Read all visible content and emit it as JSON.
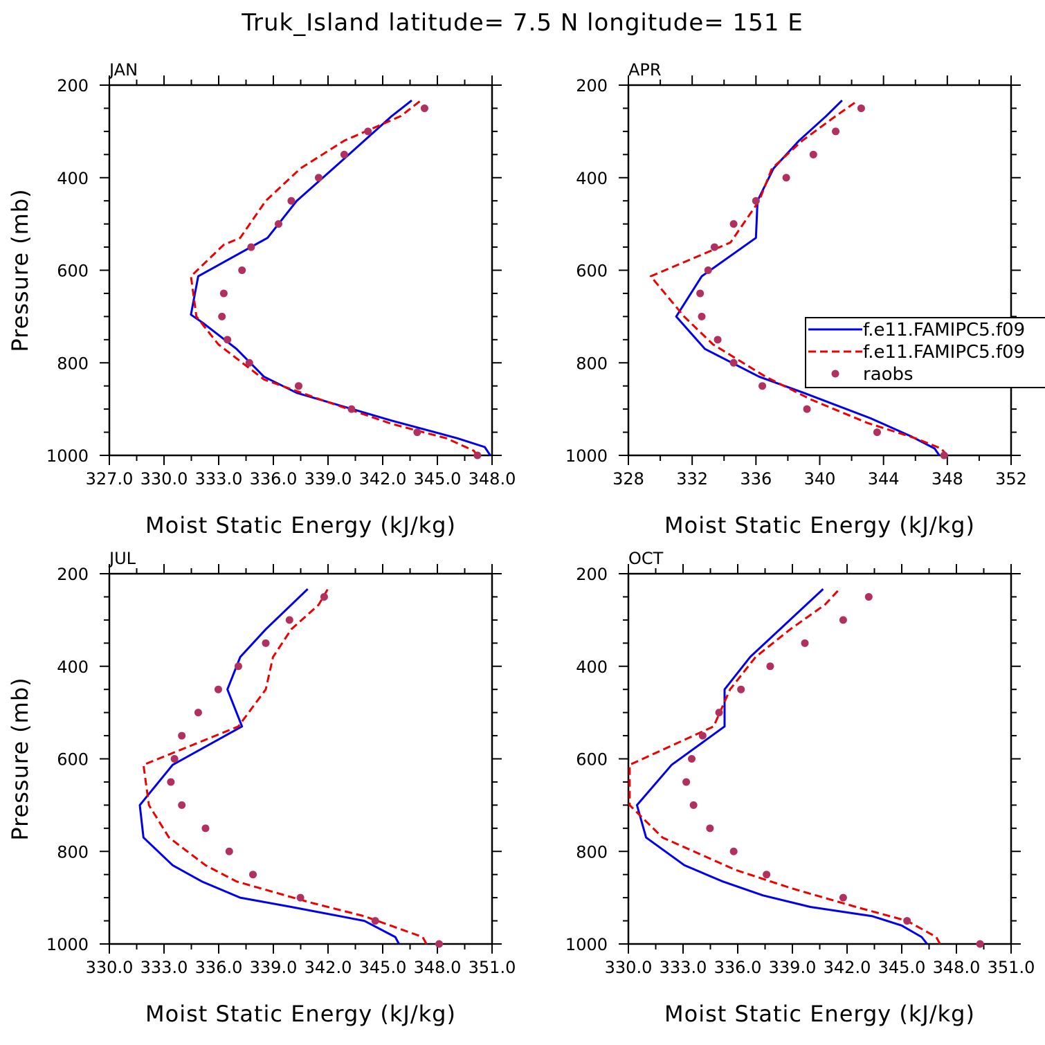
{
  "title": "Truk_Island   latitude= 7.5 N longitude= 151 E",
  "legend": {
    "entries": [
      {
        "label": "f.e11.FAMIPC5.f09",
        "style": "solid",
        "color": "#0000ee"
      },
      {
        "label": "f.e11.FAMIPC5.f09",
        "style": "dashed",
        "color": "#ee0000"
      },
      {
        "label": "raobs",
        "style": "dots",
        "color": "#b03060"
      }
    ]
  },
  "chart_data": [
    {
      "type": "line",
      "name": "JAN",
      "xlabel": "Moist Static Energy (kJ/kg)",
      "ylabel": "Pressure (mb)",
      "xlim": [
        327.03,
        348.0
      ],
      "ylim": [
        1000,
        200
      ],
      "x_tick_labels": [
        "327.0",
        "330.0",
        "333.0",
        "336.0",
        "339.0",
        "342.0",
        "345.0",
        "348.0"
      ],
      "y_ticks": [
        200,
        400,
        600,
        800,
        1000
      ],
      "series": [
        {
          "style": "solid",
          "color": "#0000ee",
          "p": [
            1000,
            982,
            963,
            925,
            865,
            830,
            770,
            715,
            696,
            613,
            530,
            450,
            380,
            320,
            267,
            233
          ],
          "x": [
            347.9,
            347.6,
            346.1,
            342.5,
            337.3,
            335.5,
            334.0,
            332.2,
            331.5,
            331.9,
            335.7,
            337.3,
            339.3,
            341.0,
            342.5,
            343.6
          ]
        },
        {
          "style": "dashed",
          "color": "#ee0000",
          "p": [
            1000,
            990,
            963,
            932,
            878,
            836,
            760,
            700,
            613,
            545,
            530,
            450,
            380,
            320,
            267,
            233
          ],
          "x": [
            347.2,
            347.0,
            345.5,
            342.5,
            338.5,
            335.5,
            333.0,
            331.8,
            331.5,
            333.3,
            334.2,
            335.6,
            337.5,
            339.9,
            343.0,
            344.1
          ],
          "x_note": "dashed"
        },
        {
          "style": "dots",
          "color": "#b03060",
          "p": [
            1000,
            950,
            900,
            850,
            800,
            750,
            700,
            650,
            600,
            550,
            500,
            450,
            400,
            350,
            300,
            250
          ],
          "x": [
            347.2,
            343.9,
            340.3,
            337.4,
            334.7,
            333.5,
            333.2,
            333.3,
            334.3,
            334.8,
            336.3,
            337.0,
            338.5,
            339.9,
            341.2,
            344.3
          ]
        }
      ]
    },
    {
      "type": "line",
      "name": "APR",
      "xlabel": "Moist Static Energy (kJ/kg)",
      "ylabel": "",
      "xlim": [
        328,
        352
      ],
      "ylim": [
        1000,
        200
      ],
      "x_tick_labels": [
        "328",
        "332",
        "336",
        "340",
        "344",
        "348",
        "352"
      ],
      "y_ticks": [
        200,
        400,
        600,
        800,
        1000
      ],
      "series": [
        {
          "style": "solid",
          "color": "#0000ee",
          "p": [
            1000,
            985,
            960,
            920,
            865,
            830,
            770,
            700,
            613,
            530,
            450,
            380,
            320,
            267,
            233
          ],
          "x": [
            347.5,
            347.2,
            345.8,
            343.2,
            339.0,
            336.2,
            332.8,
            331.0,
            332.6,
            336.0,
            336.1,
            337.1,
            338.7,
            340.4,
            341.4
          ],
          "x_note": "solid"
        },
        {
          "style": "dashed",
          "color": "#ee0000",
          "p": [
            1000,
            985,
            963,
            930,
            880,
            830,
            760,
            700,
            613,
            540,
            450,
            380,
            320,
            267,
            233
          ],
          "x": [
            348.0,
            347.6,
            346.0,
            343.0,
            339.5,
            336.6,
            333.3,
            331.5,
            329.4,
            334.4,
            336.2,
            337.0,
            338.9,
            341.0,
            342.4
          ]
        },
        {
          "style": "dots",
          "color": "#b03060",
          "p": [
            1000,
            950,
            900,
            850,
            800,
            750,
            700,
            650,
            600,
            550,
            500,
            450,
            400,
            350,
            300,
            250
          ],
          "x": [
            347.8,
            343.6,
            339.2,
            336.4,
            334.6,
            333.6,
            332.6,
            332.5,
            333.0,
            333.4,
            334.6,
            336.0,
            337.9,
            339.6,
            341.0,
            342.6
          ]
        }
      ]
    },
    {
      "type": "line",
      "name": "JUL",
      "xlabel": "Moist Static Energy (kJ/kg)",
      "ylabel": "Pressure (mb)",
      "xlim": [
        330.03,
        351.0
      ],
      "ylim": [
        1000,
        200
      ],
      "x_tick_labels": [
        "330.0",
        "333.0",
        "336.0",
        "339.0",
        "342.0",
        "345.0",
        "348.0",
        "351.0"
      ],
      "y_ticks": [
        200,
        400,
        600,
        800,
        1000
      ],
      "series": [
        {
          "style": "solid",
          "color": "#0000ee",
          "p": [
            1000,
            985,
            950,
            920,
            900,
            865,
            830,
            770,
            700,
            613,
            530,
            450,
            380,
            320,
            233
          ],
          "x": [
            345.9,
            345.7,
            344.0,
            340.0,
            337.2,
            335.1,
            333.5,
            331.9,
            331.7,
            333.5,
            337.3,
            336.5,
            337.2,
            338.6,
            340.9
          ]
        },
        {
          "style": "dashed",
          "color": "#ee0000",
          "p": [
            1000,
            985,
            940,
            910,
            865,
            830,
            770,
            700,
            613,
            530,
            450,
            380,
            320,
            267,
            233
          ],
          "x": [
            347.4,
            347.2,
            344.0,
            341.0,
            337.0,
            335.3,
            333.3,
            332.2,
            331.9,
            337.1,
            338.6,
            339.0,
            340.0,
            341.5,
            342.0
          ],
          "x_note": "dashed"
        },
        {
          "style": "dots",
          "color": "#b03060",
          "p": [
            1000,
            950,
            900,
            850,
            800,
            750,
            700,
            650,
            600,
            550,
            500,
            450,
            400,
            350,
            300,
            250
          ],
          "x": [
            348.1,
            344.6,
            340.5,
            337.9,
            336.6,
            335.3,
            334.0,
            333.4,
            333.6,
            334.0,
            334.9,
            336.0,
            337.1,
            338.6,
            339.9,
            341.8
          ]
        }
      ]
    },
    {
      "type": "line",
      "name": "OCT",
      "xlabel": "Moist Static Energy (kJ/kg)",
      "ylabel": "",
      "xlim": [
        330.03,
        351.0
      ],
      "ylim": [
        1000,
        200
      ],
      "x_tick_labels": [
        "330.0",
        "333.0",
        "336.0",
        "339.0",
        "342.0",
        "345.0",
        "348.0",
        "351.0"
      ],
      "y_ticks": [
        200,
        400,
        600,
        800,
        1000
      ],
      "series": [
        {
          "style": "solid",
          "color": "#0000ee",
          "p": [
            1000,
            985,
            960,
            940,
            920,
            895,
            865,
            830,
            770,
            700,
            613,
            530,
            450,
            380,
            233
          ],
          "x": [
            346.4,
            346.1,
            345.0,
            343.4,
            340.0,
            337.4,
            335.2,
            333.1,
            331.0,
            330.5,
            332.4,
            335.3,
            335.3,
            336.7,
            340.7
          ]
        },
        {
          "style": "dashed",
          "color": "#ee0000",
          "p": [
            1000,
            985,
            950,
            920,
            880,
            840,
            770,
            700,
            613,
            530,
            450,
            380,
            320,
            267,
            233
          ],
          "x": [
            347.1,
            346.9,
            345.3,
            342.5,
            339.0,
            335.9,
            331.9,
            330.1,
            330.1,
            334.7,
            335.6,
            337.0,
            338.9,
            340.8,
            341.6
          ],
          "x_note": "dashed"
        },
        {
          "style": "dots",
          "color": "#b03060",
          "p": [
            1000,
            950,
            900,
            850,
            800,
            750,
            700,
            650,
            600,
            550,
            500,
            450,
            400,
            350,
            300,
            250
          ],
          "x": [
            349.3,
            345.3,
            341.8,
            337.6,
            335.8,
            334.5,
            333.6,
            333.2,
            333.5,
            334.1,
            335.0,
            336.2,
            337.8,
            339.7,
            341.8,
            343.2
          ]
        }
      ]
    }
  ]
}
